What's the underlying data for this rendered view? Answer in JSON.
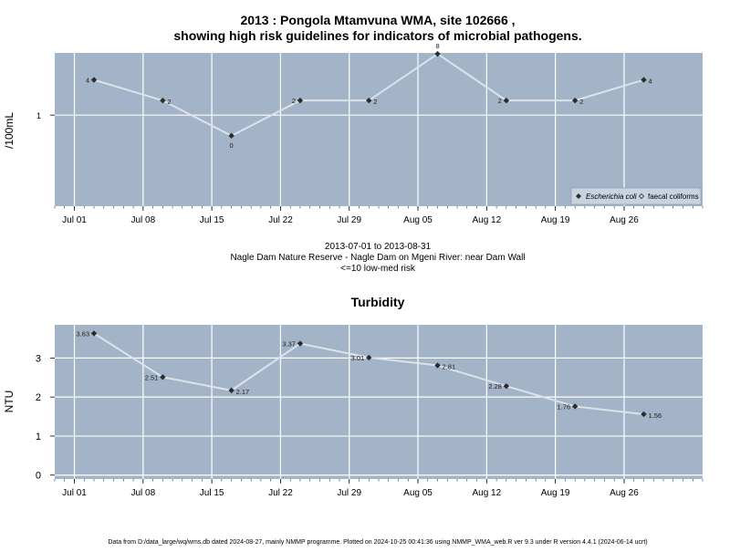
{
  "title_line1": "2013 : Pongola Mtamvuna WMA, site 102666 ,",
  "title_line2": "showing high risk guidelines for indicators of microbial pathogens.",
  "x_tick_labels": [
    "Jul 01",
    "Jul 08",
    "Jul 15",
    "Jul 22",
    "Jul 29",
    "Aug 05",
    "Aug 12",
    "Aug 19",
    "Aug 26"
  ],
  "caption": {
    "line1": "2013-07-01 to 2013-08-31",
    "line2": "Nagle Dam Nature Reserve - Nagle Dam on Mgeni River: near Dam Wall",
    "line3": "<=10 low-med risk"
  },
  "footer": "Data from D:/data_large/wq/wms.db dated 2024-08-27, mainly NMMP programme. Plotted on 2024-10-25 00:41:36 using NMMP_WMA_web.R ver 9.3 under R version 4.4.1 (2024-06-14 ucrt)",
  "colors": {
    "panel": "#a3b3c8",
    "grid": "#ffffff",
    "line": "#dde3ea",
    "point": "#2b2b2b"
  },
  "chart_data": [
    {
      "type": "line",
      "title": "",
      "xlabel": "",
      "ylabel": "/100mL",
      "y_scale": "log",
      "y_ticks": [
        1
      ],
      "y_tick_labels": [
        "1"
      ],
      "grid": true,
      "legend": {
        "placement": "bottom-right",
        "entries": [
          "Escherichia coli",
          "faecal coliforms"
        ]
      },
      "x": [
        "2013-07-03",
        "2013-07-10",
        "2013-07-17",
        "2013-07-24",
        "2013-07-31",
        "2013-08-07",
        "2013-08-14",
        "2013-08-21",
        "2013-08-28"
      ],
      "x_range": [
        "2013-06-29",
        "2013-09-03"
      ],
      "series": [
        {
          "name": "Escherichia coli",
          "values": [
            4,
            2,
            0,
            2,
            2,
            8,
            2,
            2,
            4
          ],
          "labels": [
            "4",
            "2",
            "0",
            "2",
            "2",
            "8",
            "2",
            "2",
            "4"
          ]
        }
      ]
    },
    {
      "type": "line",
      "title": "Turbidity",
      "xlabel": "",
      "ylabel": "NTU",
      "ylim": [
        -0.1,
        3.85
      ],
      "y_ticks": [
        0,
        1,
        2,
        3
      ],
      "grid": true,
      "x": [
        "2013-07-03",
        "2013-07-10",
        "2013-07-17",
        "2013-07-24",
        "2013-07-31",
        "2013-08-07",
        "2013-08-14",
        "2013-08-21",
        "2013-08-28"
      ],
      "x_range": [
        "2013-06-29",
        "2013-09-03"
      ],
      "series": [
        {
          "values": [
            3.63,
            2.51,
            2.17,
            3.37,
            3.01,
            2.81,
            2.28,
            1.76,
            1.56
          ],
          "labels": [
            "3.63",
            "2.51",
            "2.17",
            "3.37",
            "3.01",
            "2.81",
            "2.28",
            "1.76",
            "1.56"
          ]
        }
      ]
    }
  ]
}
